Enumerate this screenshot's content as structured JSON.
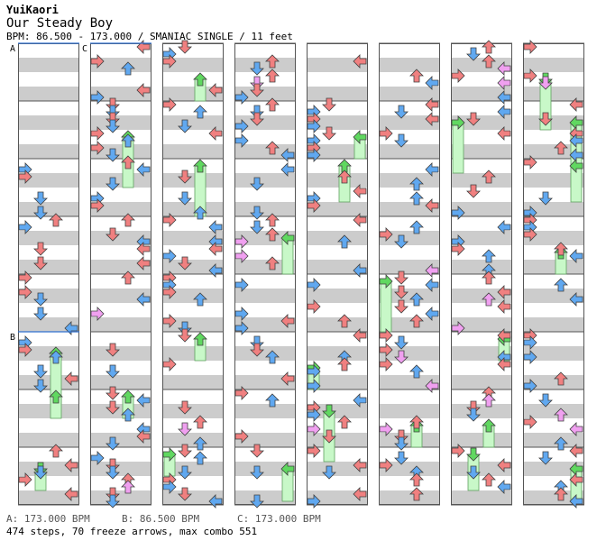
{
  "header": {
    "artist": "YuiKaori",
    "title": "Our Steady Boy",
    "meta": "BPM: 86.500 - 173.000 / SMANIAC SINGLE / 11 feet"
  },
  "markers": [
    {
      "label": "A",
      "column": 0,
      "row": 0
    },
    {
      "label": "C",
      "column": 1,
      "row": 0
    },
    {
      "label": "B",
      "column": 0,
      "row": 5
    }
  ],
  "legend": {
    "a": "A: 173.000 BPM",
    "b": "B: 86.500 BPM",
    "c": "C: 173.000 BPM"
  },
  "summary": "474 steps, 70 freeze arrows, max combo 551",
  "colors": {
    "quarter": "#f08080",
    "eighth": "#60a8f0",
    "sixteenth": "#f0a0f0",
    "freeze": "#c8f8c8",
    "freeze_head": "#60d860",
    "stripe": "#cccccc",
    "beat_line": "#3070d0"
  },
  "columns": 8,
  "rows_per_column": 8
}
